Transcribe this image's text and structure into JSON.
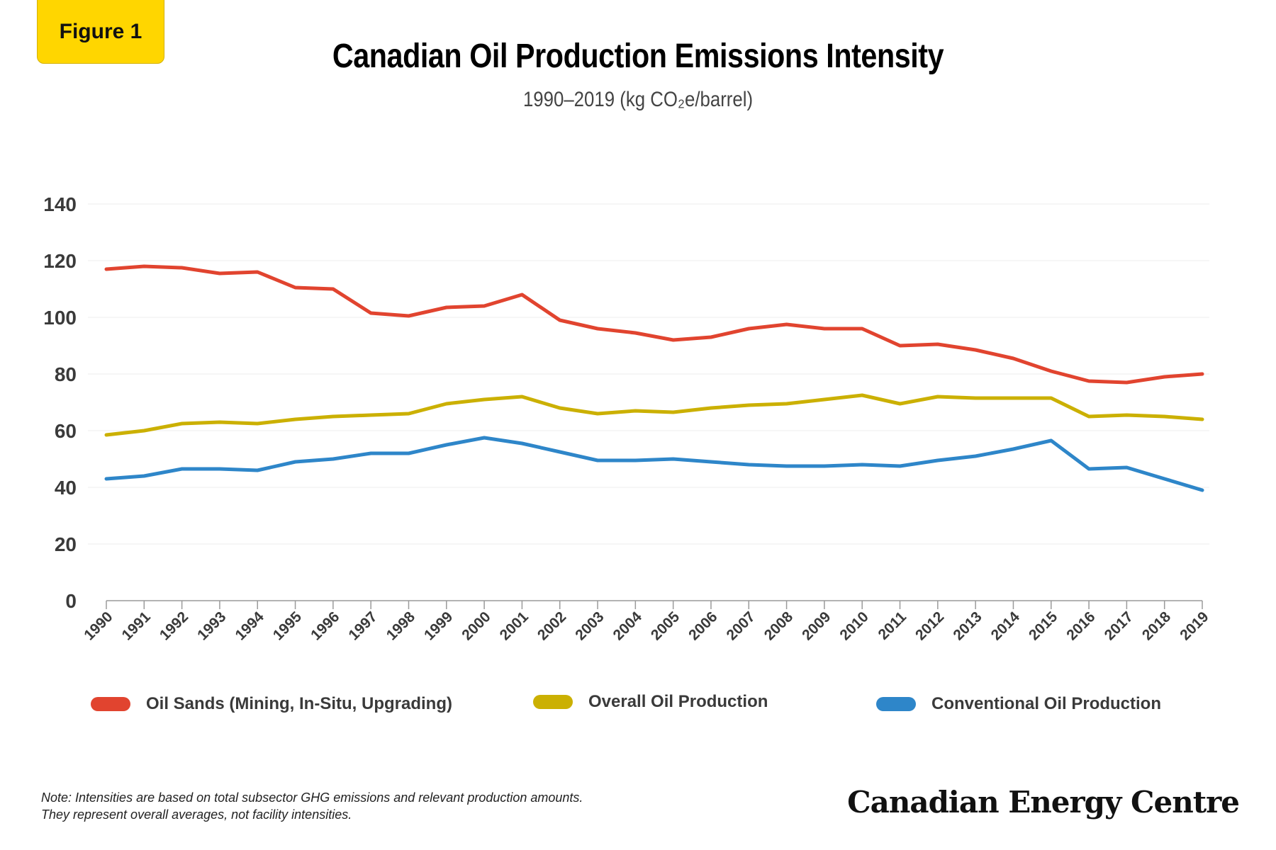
{
  "badge": {
    "label": "Figure 1"
  },
  "header": {
    "title": "Canadian Oil Production Emissions Intensity",
    "subtitle": "1990–2019 (kg CO₂e/barrel)"
  },
  "chart_data": {
    "type": "line",
    "title": "Canadian Oil Production Emissions Intensity",
    "subtitle": "1990–2019 (kg CO₂e/barrel)",
    "xlabel": "",
    "ylabel": "",
    "ylim": [
      0,
      140
    ],
    "yticks": [
      0,
      20,
      40,
      60,
      80,
      100,
      120,
      140
    ],
    "grid": true,
    "legend_position": "bottom",
    "x": [
      1990,
      1991,
      1992,
      1993,
      1994,
      1995,
      1996,
      1997,
      1998,
      1999,
      2000,
      2001,
      2002,
      2003,
      2004,
      2005,
      2006,
      2007,
      2008,
      2009,
      2010,
      2011,
      2012,
      2013,
      2014,
      2015,
      2016,
      2017,
      2018,
      2019
    ],
    "series": [
      {
        "name": "Oil Sands (Mining, In-Situ, Upgrading)",
        "color": "#e1442f",
        "values": [
          117,
          118,
          117.5,
          115.5,
          116,
          110.5,
          110,
          101.5,
          100.5,
          103.5,
          104,
          108,
          99,
          96,
          94.5,
          92,
          93,
          96,
          97.5,
          96,
          96,
          90,
          90.5,
          88.5,
          85.5,
          81,
          77.5,
          77,
          79,
          80
        ]
      },
      {
        "name": "Overall Oil Production",
        "color": "#cbb002",
        "values": [
          58.5,
          60,
          62.5,
          63,
          62.5,
          64,
          65,
          65.5,
          66,
          69.5,
          71,
          72,
          68,
          66,
          67,
          66.5,
          68,
          69,
          69.5,
          71,
          72.5,
          69.5,
          72,
          71.5,
          71.5,
          71.5,
          65,
          65.5,
          65,
          64
        ]
      },
      {
        "name": "Conventional Oil Production",
        "color": "#2e86c9",
        "values": [
          43,
          44,
          46.5,
          46.5,
          46,
          49,
          50,
          52,
          52,
          55,
          57.5,
          55.5,
          52.5,
          49.5,
          49.5,
          50,
          49,
          48,
          47.5,
          47.5,
          48,
          47.5,
          49.5,
          51,
          53.5,
          56.5,
          46.5,
          47,
          43,
          39
        ]
      }
    ]
  },
  "footer": {
    "note_line1": "Note: Intensities are based on total subsector GHG emissions and relevant production amounts.",
    "note_line2": "They represent overall averages, not facility intensities.",
    "logo_text": "Canadian Energy Centre"
  }
}
